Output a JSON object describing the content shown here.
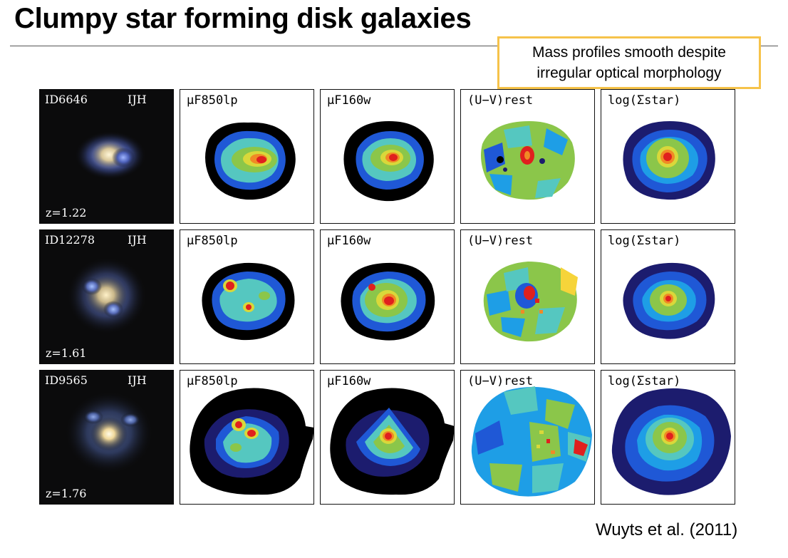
{
  "slide": {
    "title": "Clumpy star forming disk galaxies",
    "callout": [
      "Mass profiles smooth despite",
      "irregular optical morphology"
    ],
    "citation": "Wuyts et al. (2011)"
  },
  "panel_labels": [
    "μF850lp",
    "μF160w",
    "(U−V)rest",
    "log(Σstar)"
  ],
  "galaxies": [
    {
      "id": "ID6646",
      "band": "IJH",
      "redshift": "z=1.22"
    },
    {
      "id": "ID12278",
      "band": "IJH",
      "redshift": "z=1.61"
    },
    {
      "id": "ID9565",
      "band": "IJH",
      "redshift": "z=1.76"
    }
  ],
  "colors": {
    "callout_border": "#f6c34a",
    "map_scale": [
      "#000000",
      "#1c1c6e",
      "#1f58d6",
      "#1e9ee6",
      "#55c7c0",
      "#8bc64a",
      "#d9d83a",
      "#f08a25",
      "#e0201e"
    ]
  }
}
